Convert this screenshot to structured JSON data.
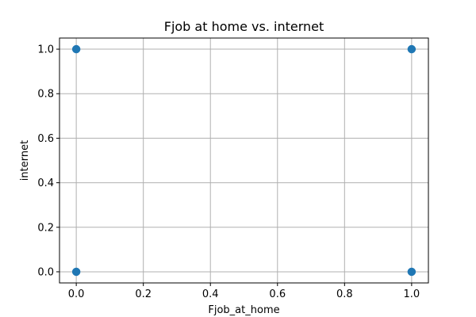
{
  "chart_data": {
    "type": "scatter",
    "title": "Fjob at home vs. internet",
    "xlabel": "Fjob_at_home",
    "ylabel": "internet",
    "xlim": [
      -0.05,
      1.05
    ],
    "ylim": [
      -0.05,
      1.05
    ],
    "xticks": [
      "0.0",
      "0.2",
      "0.4",
      "0.6",
      "0.8",
      "1.0"
    ],
    "yticks": [
      "0.0",
      "0.2",
      "0.4",
      "0.6",
      "0.8",
      "1.0"
    ],
    "grid": true,
    "point_color": "#1f77b4",
    "series": [
      {
        "points": [
          {
            "x": 0,
            "y": 1
          },
          {
            "x": 1,
            "y": 1
          },
          {
            "x": 0,
            "y": 0
          },
          {
            "x": 1,
            "y": 0
          }
        ]
      }
    ]
  }
}
